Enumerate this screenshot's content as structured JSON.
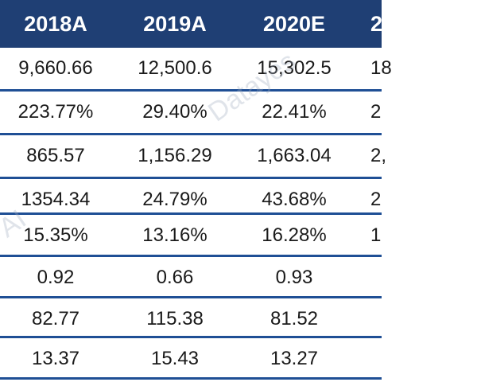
{
  "header": {
    "columns": [
      "2018A",
      "2019A",
      "2020E",
      "2"
    ]
  },
  "rows": [
    [
      "9,660.66",
      "12,500.6",
      "15,302.5",
      "18"
    ],
    [
      "223.77%",
      "29.40%",
      "22.41%",
      "2"
    ],
    [
      "865.57",
      "1,156.29",
      "1,663.04",
      "2,"
    ],
    [
      "1354.34",
      "24.79%",
      "43.68%",
      "2"
    ],
    [
      "15.35%",
      "13.16%",
      "16.28%",
      "1"
    ],
    [
      "0.92",
      "0.66",
      "0.93",
      ""
    ],
    [
      "82.77",
      "115.38",
      "81.52",
      ""
    ],
    [
      "13.37",
      "15.43",
      "13.27",
      ""
    ]
  ],
  "watermarks": [
    "Datayes",
    "AI"
  ],
  "colors": {
    "header_bg": "#1f3f74",
    "row_divider": "#1f4f95"
  }
}
